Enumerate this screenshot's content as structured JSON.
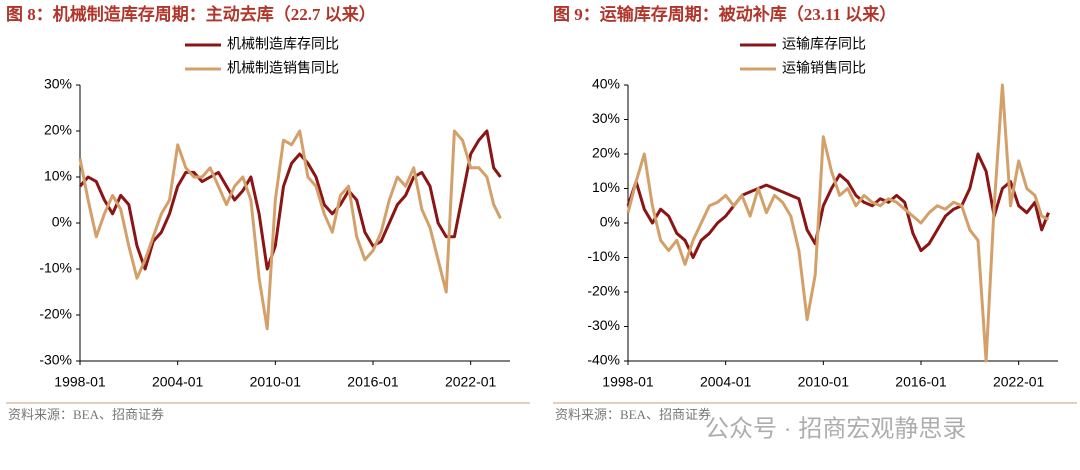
{
  "chart_data": [
    {
      "type": "line",
      "title": "图 8：机械制造库存周期：主动去库（22.7 以来）",
      "source": "资料来源：BEA、招商证券",
      "x": [
        "1998-01",
        "1998-07",
        "1999-01",
        "1999-07",
        "2000-01",
        "2000-07",
        "2001-01",
        "2001-07",
        "2002-01",
        "2002-07",
        "2003-01",
        "2003-07",
        "2004-01",
        "2004-07",
        "2005-01",
        "2005-07",
        "2006-01",
        "2006-07",
        "2007-01",
        "2007-07",
        "2008-01",
        "2008-07",
        "2009-01",
        "2009-07",
        "2010-01",
        "2010-07",
        "2011-01",
        "2011-07",
        "2012-01",
        "2012-07",
        "2013-01",
        "2013-07",
        "2014-01",
        "2014-07",
        "2015-01",
        "2015-07",
        "2016-01",
        "2016-07",
        "2017-01",
        "2017-07",
        "2018-01",
        "2018-07",
        "2019-01",
        "2019-07",
        "2020-01",
        "2020-07",
        "2021-01",
        "2021-07",
        "2022-01",
        "2022-07",
        "2023-01",
        "2023-06",
        "2023-11"
      ],
      "xlim": [
        "1998-01",
        "2024-06"
      ],
      "xticks": [
        "1998-01",
        "2004-01",
        "2010-01",
        "2016-01",
        "2022-01"
      ],
      "ylim": [
        -30,
        30
      ],
      "yticks": [
        {
          "value": -30,
          "label": "-30%"
        },
        {
          "value": -20,
          "label": "-20%"
        },
        {
          "value": -10,
          "label": "-10%"
        },
        {
          "value": 0,
          "label": "0%"
        },
        {
          "value": 10,
          "label": "10%"
        },
        {
          "value": 20,
          "label": "20%"
        },
        {
          "value": 30,
          "label": "30%"
        }
      ],
      "series": [
        {
          "name": "机械制造库存同比",
          "color": "#8b1414",
          "values": [
            8,
            10,
            9,
            5,
            2,
            6,
            4,
            -5,
            -10,
            -4,
            -2,
            2,
            8,
            11,
            11,
            9,
            10,
            11,
            8,
            5,
            7,
            10,
            2,
            -10,
            -5,
            8,
            13,
            15,
            13,
            10,
            4,
            2,
            4,
            7,
            5,
            -2,
            -5,
            -4,
            0,
            4,
            6,
            10,
            11,
            8,
            0,
            -3,
            -3,
            6,
            15,
            18,
            20,
            12,
            10
          ]
        },
        {
          "name": "机械制造销售同比",
          "color": "#d4a06a",
          "values": [
            14,
            5,
            -3,
            2,
            6,
            3,
            -5,
            -12,
            -8,
            -3,
            2,
            5,
            17,
            12,
            10,
            10,
            12,
            8,
            4,
            8,
            10,
            5,
            -12,
            -23,
            5,
            18,
            17,
            20,
            10,
            8,
            2,
            -2,
            6,
            8,
            -3,
            -8,
            -6,
            -2,
            5,
            10,
            8,
            12,
            3,
            -1,
            -8,
            -15,
            20,
            18,
            12,
            12,
            10,
            4,
            1
          ]
        }
      ]
    },
    {
      "type": "line",
      "title": "图 9：运输库存周期：被动补库（23.11 以来）",
      "source": "资料来源：BEA、招商证券",
      "x": [
        "1998-01",
        "1998-07",
        "1999-01",
        "1999-07",
        "2000-01",
        "2000-07",
        "2001-01",
        "2001-07",
        "2002-01",
        "2002-07",
        "2003-01",
        "2003-07",
        "2004-01",
        "2004-07",
        "2005-01",
        "2005-07",
        "2006-01",
        "2006-07",
        "2007-01",
        "2007-07",
        "2008-01",
        "2008-07",
        "2009-01",
        "2009-07",
        "2010-01",
        "2010-07",
        "2011-01",
        "2011-07",
        "2012-01",
        "2012-07",
        "2013-01",
        "2013-07",
        "2014-01",
        "2014-07",
        "2015-01",
        "2015-07",
        "2016-01",
        "2016-07",
        "2017-01",
        "2017-07",
        "2018-01",
        "2018-07",
        "2019-01",
        "2019-07",
        "2020-01",
        "2020-07",
        "2021-01",
        "2021-07",
        "2022-01",
        "2022-07",
        "2023-01",
        "2023-06",
        "2023-11"
      ],
      "xlim": [
        "1998-01",
        "2024-06"
      ],
      "xticks": [
        "1998-01",
        "2004-01",
        "2010-01",
        "2016-01",
        "2022-01"
      ],
      "ylim": [
        -40,
        40
      ],
      "yticks": [
        {
          "value": -40,
          "label": "-40%"
        },
        {
          "value": -30,
          "label": "-30%"
        },
        {
          "value": -20,
          "label": "-20%"
        },
        {
          "value": -10,
          "label": "-10%"
        },
        {
          "value": 0,
          "label": "0%"
        },
        {
          "value": 10,
          "label": "10%"
        },
        {
          "value": 20,
          "label": "20%"
        },
        {
          "value": 30,
          "label": "30%"
        },
        {
          "value": 40,
          "label": "40%"
        }
      ],
      "series": [
        {
          "name": "运输库存同比",
          "color": "#8b1414",
          "values": [
            5,
            12,
            4,
            0,
            4,
            2,
            -3,
            -5,
            -10,
            -5,
            -3,
            0,
            2,
            5,
            8,
            9,
            10,
            11,
            10,
            9,
            8,
            7,
            -2,
            -6,
            5,
            10,
            14,
            12,
            8,
            6,
            5,
            7,
            6,
            8,
            6,
            -3,
            -8,
            -6,
            -2,
            2,
            4,
            5,
            10,
            20,
            15,
            2,
            10,
            12,
            5,
            3,
            6,
            -2,
            3
          ]
        },
        {
          "name": "运输销售同比",
          "color": "#d4a06a",
          "values": [
            3,
            12,
            20,
            5,
            -5,
            -8,
            -5,
            -12,
            -5,
            0,
            5,
            6,
            8,
            5,
            8,
            2,
            10,
            3,
            8,
            6,
            2,
            -8,
            -28,
            -15,
            25,
            15,
            8,
            10,
            5,
            8,
            6,
            5,
            7,
            6,
            4,
            2,
            0,
            3,
            5,
            4,
            6,
            5,
            -2,
            -5,
            -40,
            5,
            40,
            5,
            18,
            10,
            8,
            2,
            1
          ]
        }
      ]
    }
  ],
  "watermark": "公众号 · 招商宏观静思录"
}
